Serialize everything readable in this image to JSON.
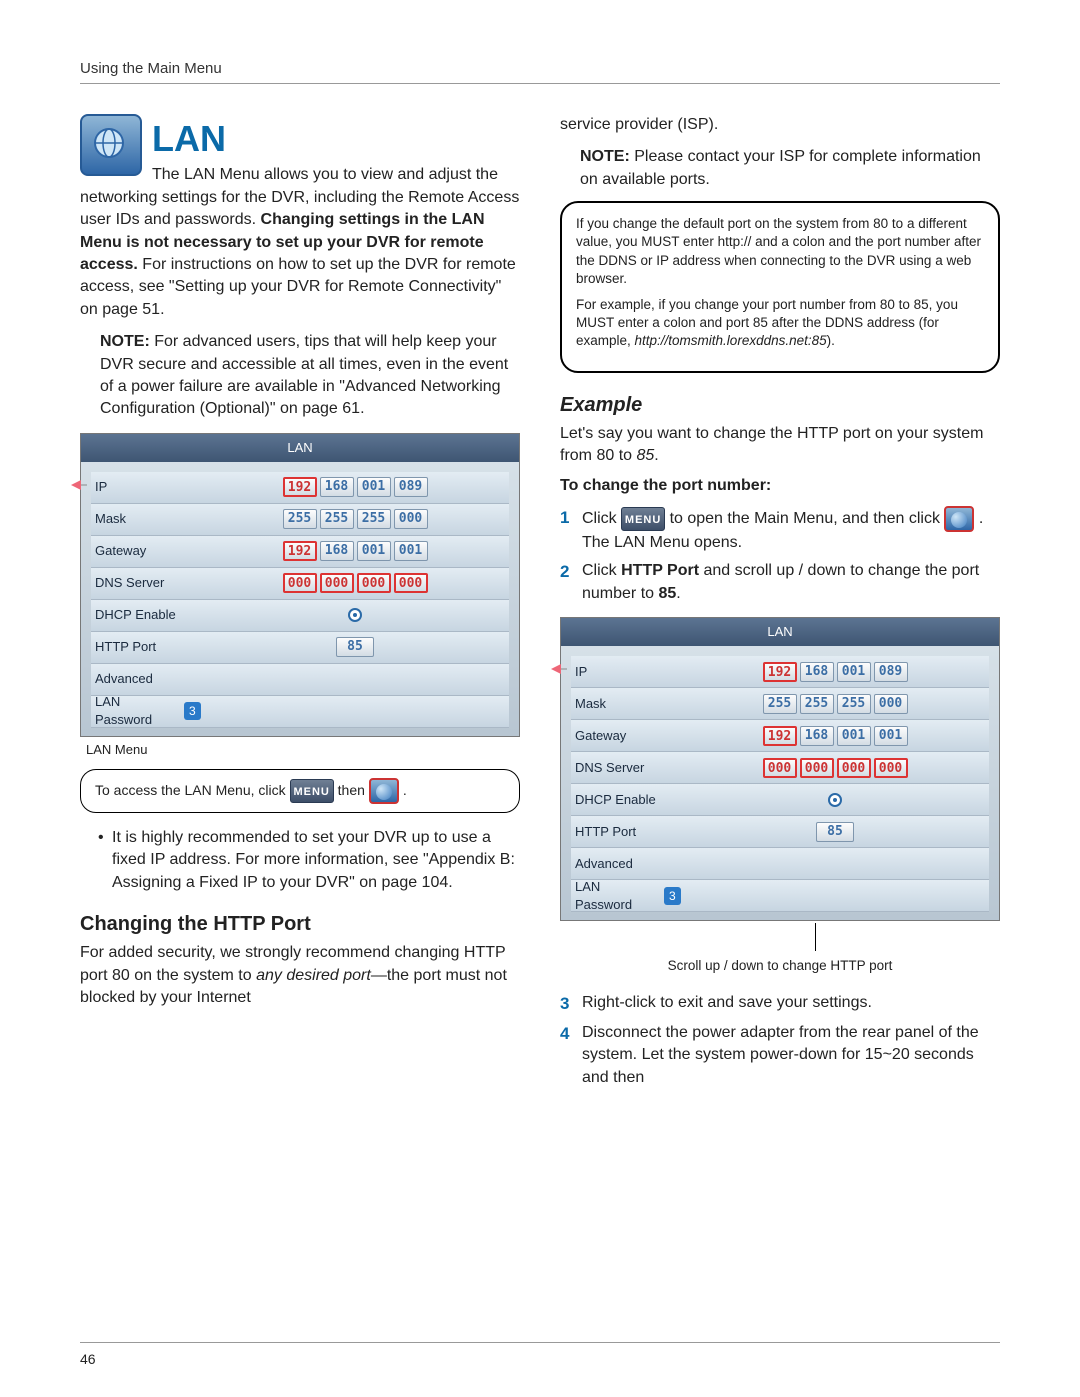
{
  "header": "Using the Main Menu",
  "pageNumber": "46",
  "left": {
    "lanTitle": "LAN",
    "intro1": "The LAN Menu allows you to view and adjust the networking settings for the DVR, including the Remote Access user IDs and passwords. ",
    "introBold": "Changing settings in the LAN Menu is not necessary to set up your DVR for remote access.",
    "intro2": " For instructions on how to set up the DVR for remote access, see \"Setting up your DVR for Remote Connectivity\" on page 51.",
    "noteLabel": "NOTE:",
    "note1": " For advanced users, tips that will help keep your DVR secure and accessible at all times, even in the event of a power failure are available in \"Advanced Networking Configuration (Optional)\" on page 61.",
    "lanCaption": "LAN Menu",
    "tipPre": "To access the LAN Menu, click ",
    "tipMid": " then ",
    "tipEnd": ".",
    "bullet": "It is highly recommended to set your DVR up to use a fixed IP address. For more information, see \"Appendix B: Assigning a Fixed IP to your DVR\" on page 104.",
    "sectionHead": "Changing the HTTP Port",
    "para2a": "For added security, we strongly recommend changing HTTP port 80 on the system to ",
    "para2i": "any desired port",
    "para2b": "—the port must not blocked by your Internet"
  },
  "right": {
    "contTop": "service provider (ISP).",
    "noteLabel": "NOTE:",
    "note2": " Please contact your ISP for complete information on available ports.",
    "callout1": "If you change the default port on the system from 80 to a different value, you MUST enter http:// and a colon and the port number after the DDNS or IP address when connecting to the DVR using a web browser.",
    "callout2a": "For example, if you change your port number from 80 to 85, you MUST enter a colon and port 85 after the DDNS address (for example, ",
    "callout2i": "http://tomsmith.lorexddns.net:85",
    "callout2b": ").",
    "exampleHead": "Example",
    "examplePara_a": "Let's say you want to change the HTTP port on your system from 80 to ",
    "examplePara_i": "85",
    "examplePara_b": ".",
    "toChange": "To change the port number:",
    "step1a": "Click ",
    "step1b": " to open the Main Menu, and then click ",
    "step1c": ". The LAN Menu opens.",
    "step2a": "Click ",
    "step2bold": "HTTP Port",
    "step2b": " and scroll up / down to change the port number to ",
    "step2bold2": "85",
    "step2c": ".",
    "scrollCap": "Scroll up / down to change HTTP port",
    "step3": "Right-click to exit and save your settings.",
    "step4": "Disconnect the power adapter from the rear panel of the system. Let the system power-down for 15~20 seconds and then"
  },
  "lanMenu": {
    "title": "LAN",
    "rows": [
      {
        "label": "IP",
        "octets": [
          "192",
          "168",
          "001",
          "089"
        ],
        "redIdx": 0
      },
      {
        "label": "Mask",
        "octets": [
          "255",
          "255",
          "255",
          "000"
        ],
        "redIdx": -1
      },
      {
        "label": "Gateway",
        "octets": [
          "192",
          "168",
          "001",
          "001"
        ],
        "redIdx": 0
      },
      {
        "label": "DNS Server",
        "octets": [
          "000",
          "000",
          "000",
          "000"
        ],
        "redIdx": -1,
        "allRed": true
      }
    ],
    "dhcpLabel": "DHCP Enable",
    "httpLabel": "HTTP Port",
    "httpValue": "85",
    "advLabel": "Advanced",
    "pwdLabel": "LAN Password",
    "pwdBadge": "3"
  },
  "icons": {
    "menuLabel": "MENU"
  }
}
